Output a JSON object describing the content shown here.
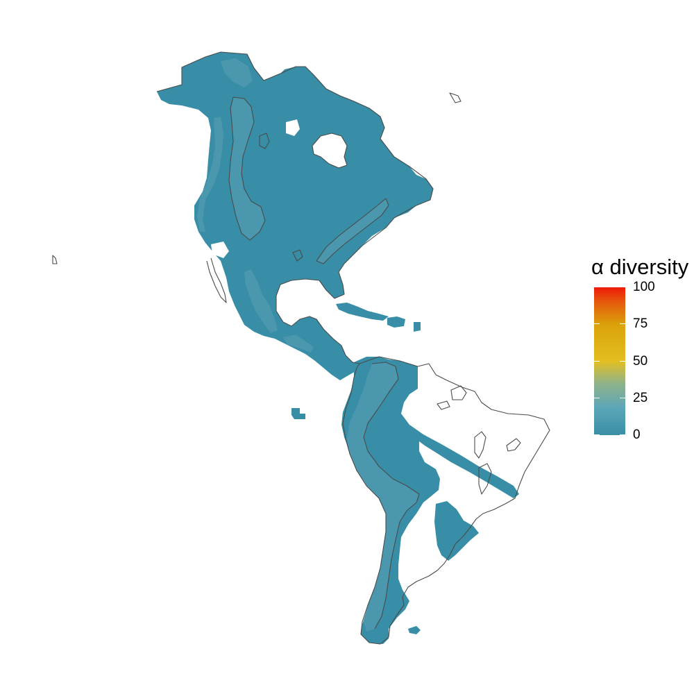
{
  "legend": {
    "title": "α diversity",
    "ticks": [
      {
        "value": 100,
        "label": "100"
      },
      {
        "value": 75,
        "label": "75"
      },
      {
        "value": 50,
        "label": "50"
      },
      {
        "value": 25,
        "label": "25"
      },
      {
        "value": 0,
        "label": "0"
      }
    ],
    "range": [
      0,
      100
    ],
    "gradient": [
      {
        "value": 0,
        "color": "#3a8ea5"
      },
      {
        "value": 18,
        "color": "#5aa6b8"
      },
      {
        "value": 35,
        "color": "#8fb38a"
      },
      {
        "value": 50,
        "color": "#e3bf22"
      },
      {
        "value": 75,
        "color": "#dba10a"
      },
      {
        "value": 90,
        "color": "#e55a0c"
      },
      {
        "value": 100,
        "color": "#ee1a0a"
      }
    ]
  },
  "colors": {
    "fill_base": "#378ea6",
    "fill_mountain": "#4b98ae",
    "outline": "#4a4a4a",
    "background": "#ffffff"
  }
}
